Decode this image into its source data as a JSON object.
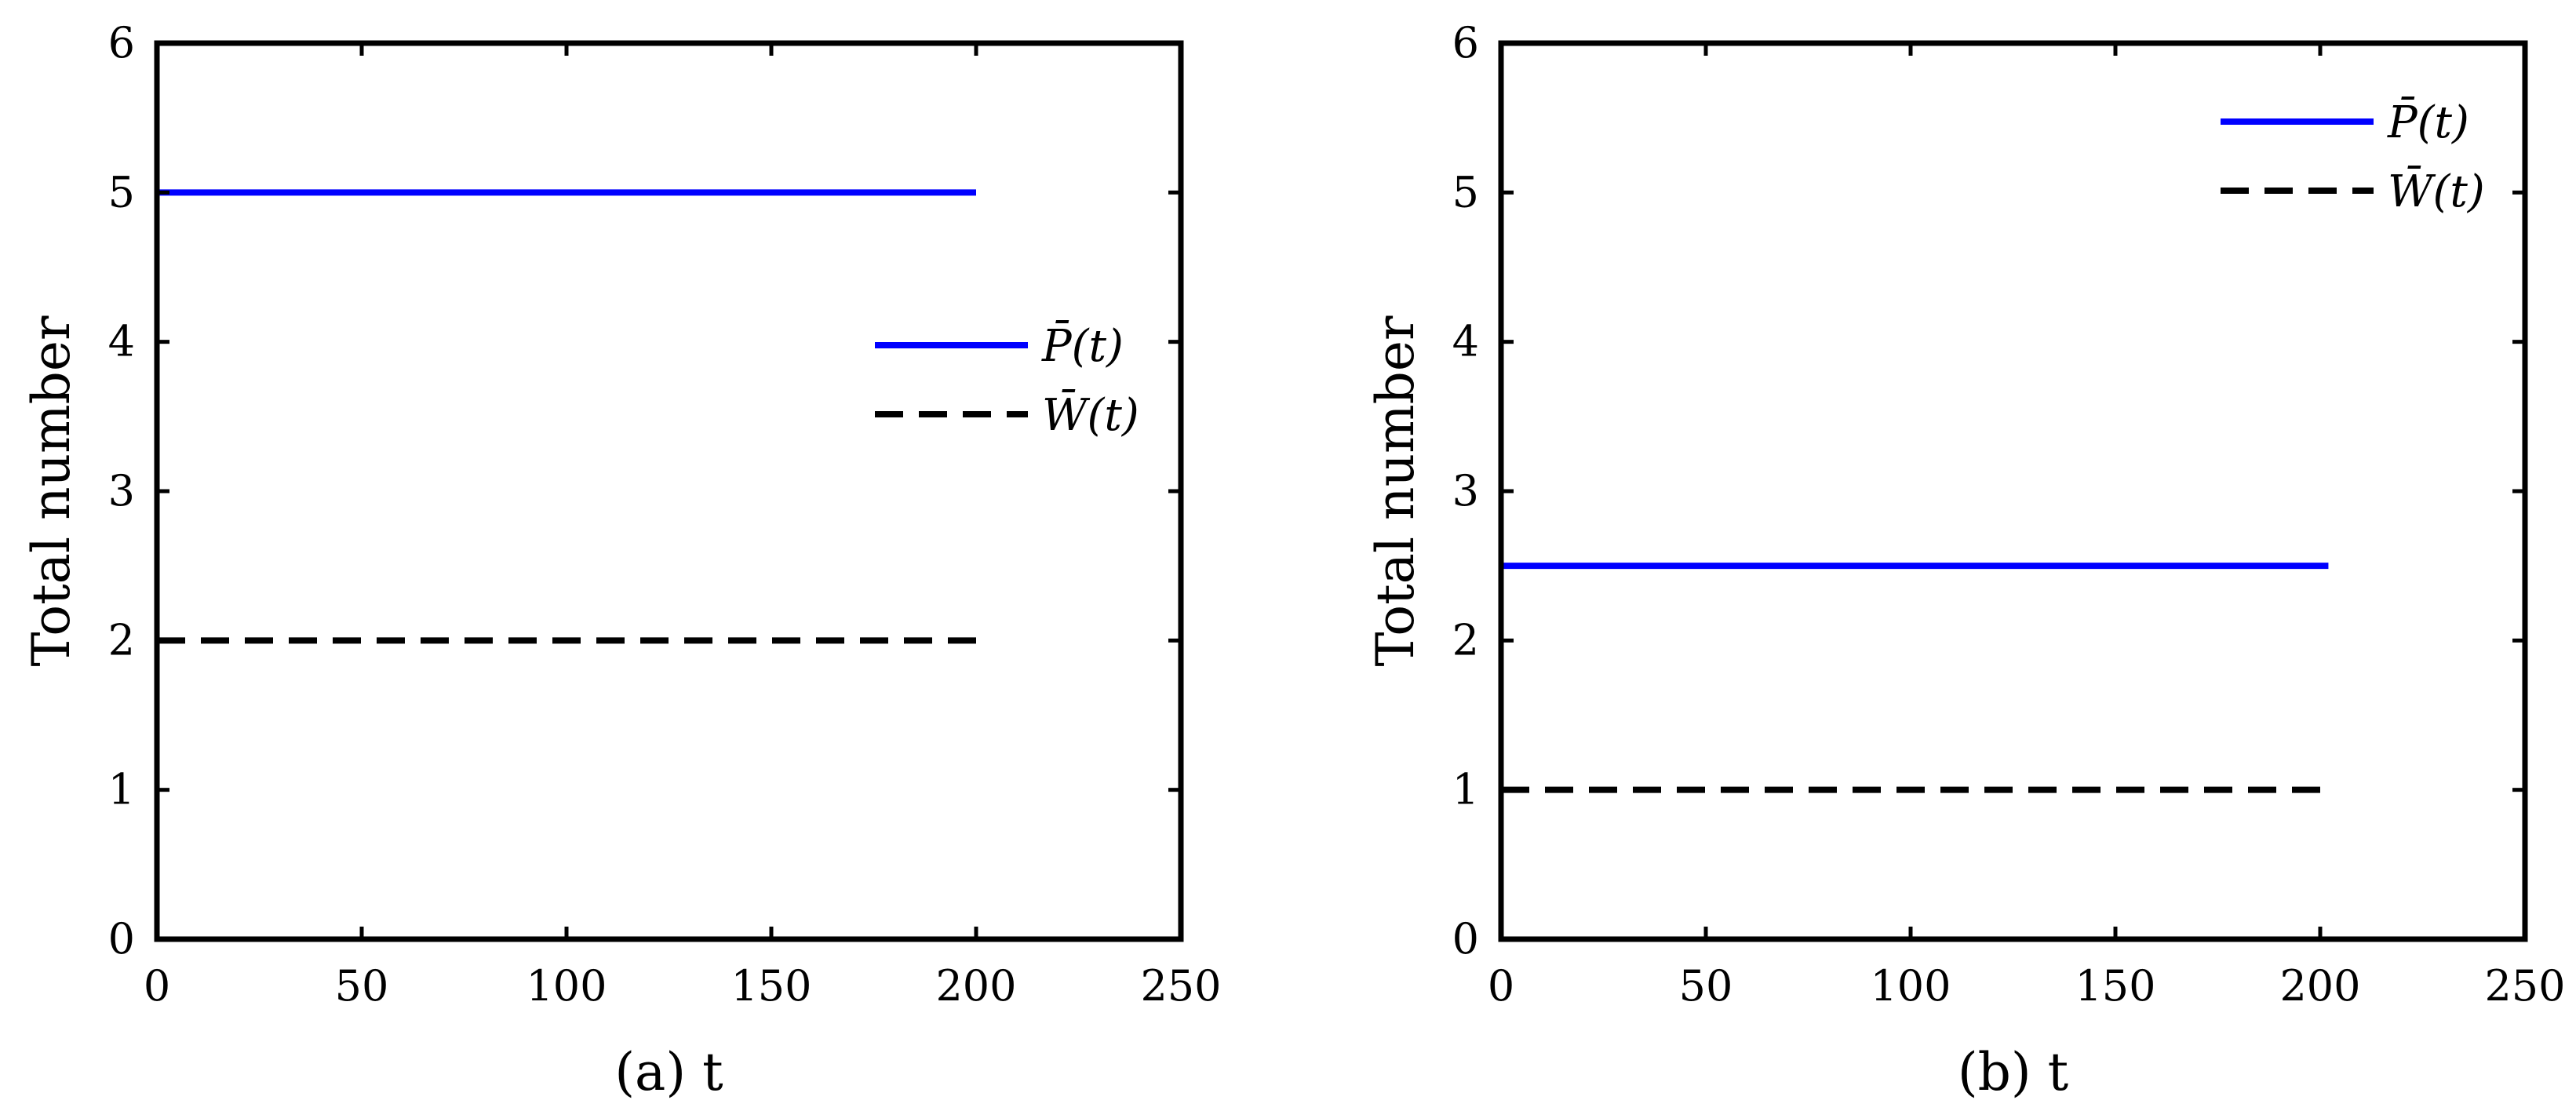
{
  "chart_data": [
    {
      "type": "line",
      "xlabel": "(a) t",
      "ylabel": "Total number",
      "xlim": [
        0,
        250
      ],
      "ylim": [
        0,
        6
      ],
      "xticks": [
        0,
        50,
        100,
        150,
        200,
        250
      ],
      "yticks": [
        0,
        1,
        2,
        3,
        4,
        5,
        6
      ],
      "grid": false,
      "legend_position": "middle-right",
      "series": [
        {
          "name": "P̄(t)",
          "color": "#0000ff",
          "dash": "solid",
          "x": [
            0,
            200
          ],
          "y": [
            5,
            5
          ]
        },
        {
          "name": "W̄(t)",
          "color": "#000000",
          "dash": "dashed",
          "x": [
            0,
            200
          ],
          "y": [
            2,
            2
          ]
        }
      ]
    },
    {
      "type": "line",
      "xlabel": "(b) t",
      "ylabel": "Total number",
      "xlim": [
        0,
        250
      ],
      "ylim": [
        0,
        6
      ],
      "xticks": [
        0,
        50,
        100,
        150,
        200,
        250
      ],
      "yticks": [
        0,
        1,
        2,
        3,
        4,
        5,
        6
      ],
      "grid": false,
      "legend_position": "top-right",
      "series": [
        {
          "name": "P̄(t)",
          "color": "#0000ff",
          "dash": "solid",
          "x": [
            0,
            202
          ],
          "y": [
            2.5,
            2.5
          ]
        },
        {
          "name": "W̄(t)",
          "color": "#000000",
          "dash": "dashed",
          "x": [
            0,
            200
          ],
          "y": [
            1,
            1
          ]
        }
      ]
    }
  ]
}
